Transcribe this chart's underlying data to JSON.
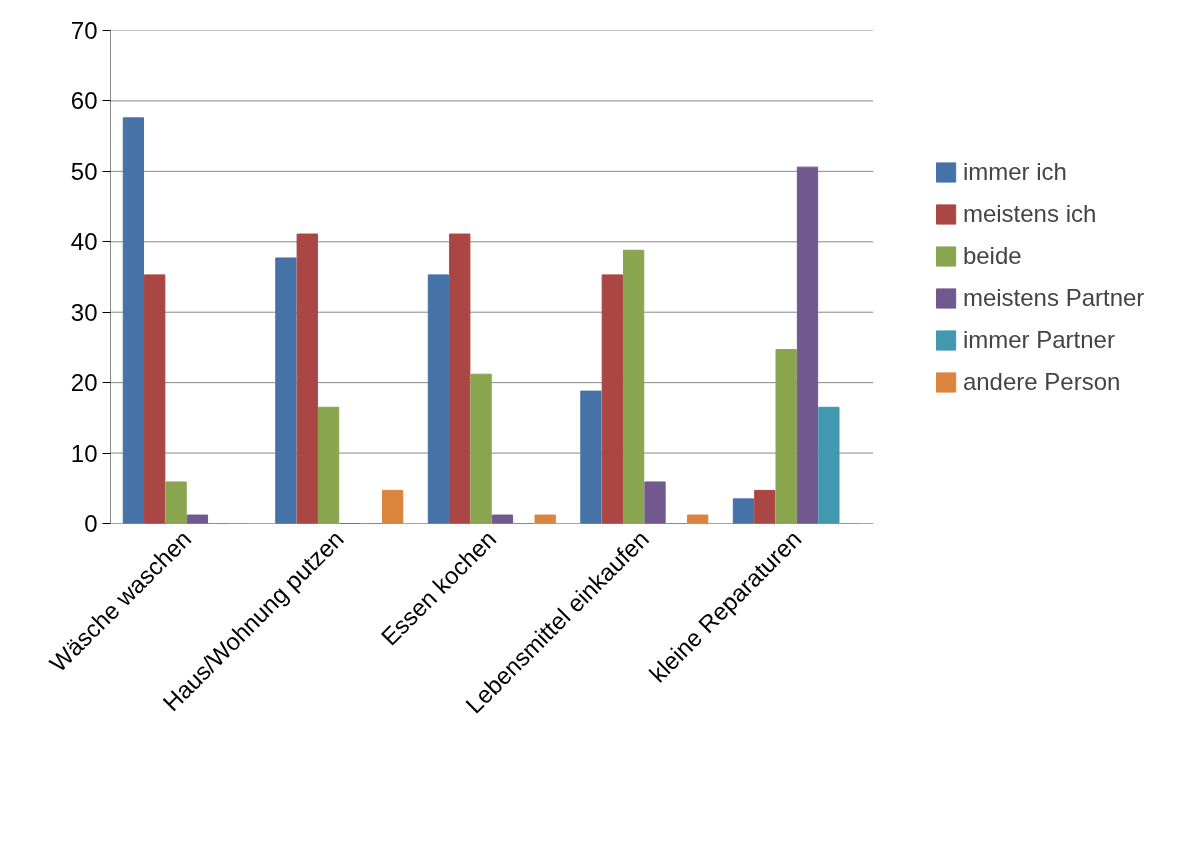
{
  "chart_data": {
    "type": "bar",
    "categories": [
      "Wäsche waschen",
      "Haus/Wohnung putzen",
      "Essen kochen",
      "Lebensmittel einkaufen",
      "kleine Reparaturen"
    ],
    "series": [
      {
        "name": "immer ich",
        "color": "#4572a7",
        "values": [
          57.6,
          37.7,
          35.3,
          18.8,
          3.5
        ]
      },
      {
        "name": "meistens ich",
        "color": "#aa4643",
        "values": [
          35.3,
          41.1,
          41.1,
          35.3,
          4.7
        ]
      },
      {
        "name": "beide",
        "color": "#89a54e",
        "values": [
          5.9,
          16.5,
          21.2,
          38.8,
          24.7
        ]
      },
      {
        "name": "meistens Partner",
        "color": "#71588f",
        "values": [
          1.2,
          0,
          1.2,
          5.9,
          50.6
        ]
      },
      {
        "name": "immer Partner",
        "color": "#4198af",
        "values": [
          0,
          0,
          0,
          0,
          16.5
        ]
      },
      {
        "name": "andere Person",
        "color": "#db843d",
        "values": [
          0,
          4.7,
          1.2,
          1.2,
          0
        ]
      }
    ],
    "ylim": [
      0,
      70
    ],
    "yticks": [
      0,
      10,
      20,
      30,
      40,
      50,
      60,
      70
    ],
    "grid": "y",
    "legend": "right"
  }
}
